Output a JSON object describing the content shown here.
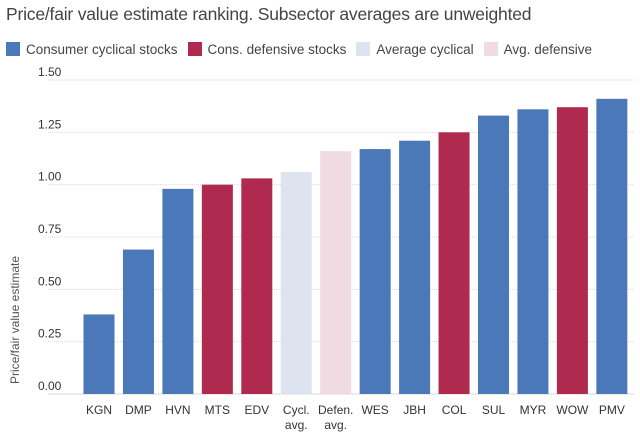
{
  "chart_data": {
    "type": "bar",
    "title": "Price/fair value estimate ranking. Subsector averages are unweighted",
    "ylabel": "Price/fair value estimate",
    "xlabel": "",
    "ylim": [
      0,
      1.5
    ],
    "yticks": [
      "1.50",
      "1.25",
      "1.00",
      "0.75",
      "0.50",
      "0.25",
      "0.00"
    ],
    "legend_position": "top",
    "grid": true,
    "legend": [
      {
        "key": "consumer_cyclical",
        "label": "Consumer cyclical stocks",
        "color": "#4a78b8"
      },
      {
        "key": "cons_defensive",
        "label": "Cons. defensive stocks",
        "color": "#b0294f"
      },
      {
        "key": "avg_cyclical",
        "label": "Average cyclical",
        "color": "#dde3ef"
      },
      {
        "key": "avg_defensive",
        "label": "Avg. defensive",
        "color": "#f1dbe3"
      }
    ],
    "categories": [
      "KGN",
      "DMP",
      "HVN",
      "MTS",
      "EDV",
      "Cycl. avg.",
      "Defen. avg.",
      "WES",
      "JBH",
      "COL",
      "SUL",
      "MYR",
      "WOW",
      "PMV"
    ],
    "values": [
      0.38,
      0.69,
      0.98,
      1.0,
      1.03,
      1.06,
      1.16,
      1.17,
      1.21,
      1.25,
      1.33,
      1.36,
      1.37,
      1.41
    ],
    "bar_groups": [
      "consumer_cyclical",
      "consumer_cyclical",
      "consumer_cyclical",
      "cons_defensive",
      "cons_defensive",
      "avg_cyclical",
      "avg_defensive",
      "consumer_cyclical",
      "consumer_cyclical",
      "cons_defensive",
      "consumer_cyclical",
      "consumer_cyclical",
      "cons_defensive",
      "consumer_cyclical"
    ]
  }
}
